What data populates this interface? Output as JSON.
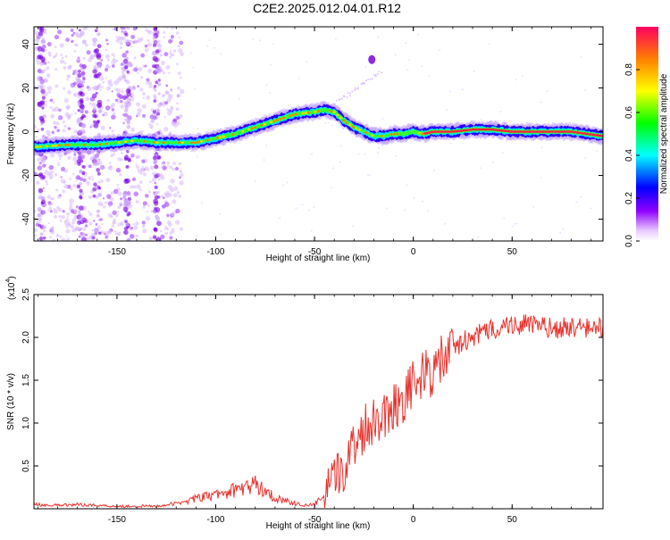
{
  "page": {
    "title": "C2E2.2025.012.04.01.R12"
  },
  "chart_data": [
    {
      "type": "heatmap",
      "xlabel": "Height of straight line (km)",
      "ylabel": "Frequency (Hz)",
      "xlim": [
        -192,
        96
      ],
      "ylim": [
        -50,
        48
      ],
      "xticks": [
        -150,
        -100,
        -50,
        0,
        50
      ],
      "yticks": [
        -40,
        -20,
        0,
        20,
        40
      ],
      "ridge": {
        "x": [
          -192,
          -175,
          -160,
          -150,
          -140,
          -130,
          -120,
          -110,
          -100,
          -90,
          -80,
          -70,
          -60,
          -50,
          -45,
          -40,
          -35,
          -30,
          -25,
          -20,
          -15,
          -10,
          -5,
          0,
          5,
          10,
          20,
          30,
          40,
          50,
          60,
          70,
          80,
          96
        ],
        "y": [
          -7,
          -6,
          -6,
          -5,
          -4,
          -5,
          -5,
          -5,
          -3,
          -1,
          2,
          5,
          8,
          9,
          10,
          9,
          5,
          2,
          0,
          -2,
          -2,
          -1,
          -1,
          0,
          -1,
          0,
          0,
          1,
          1,
          0,
          0,
          0,
          0,
          -2
        ]
      },
      "colorbar": {
        "label": "Normalized spectral amplitude",
        "ticks": [
          "0.0",
          "0.2",
          "0.4",
          "0.6",
          "0.8"
        ],
        "range": [
          0,
          1
        ]
      }
    },
    {
      "type": "line",
      "xlabel": "Height of straight line (km)",
      "ylabel": "SNR (10 * v/v)",
      "multiplier_label": "(x10",
      "multiplier_exp": "4",
      "xlim": [
        -192,
        96
      ],
      "ylim": [
        0,
        2.5
      ],
      "xticks": [
        -150,
        -100,
        -50,
        0,
        50
      ],
      "yticks": [
        0.5,
        1.0,
        1.5,
        2.0,
        2.5
      ],
      "color": "#e8312c",
      "x": [
        -192,
        -180,
        -170,
        -160,
        -150,
        -140,
        -130,
        -120,
        -110,
        -100,
        -90,
        -80,
        -75,
        -70,
        -65,
        -60,
        -55,
        -50,
        -45,
        -40,
        -35,
        -30,
        -25,
        -20,
        -15,
        -10,
        -5,
        0,
        5,
        10,
        15,
        20,
        25,
        30,
        35,
        40,
        50,
        60,
        70,
        80,
        90,
        96
      ],
      "values": [
        0.05,
        0.04,
        0.05,
        0.04,
        0.03,
        0.03,
        0.03,
        0.06,
        0.12,
        0.16,
        0.22,
        0.28,
        0.22,
        0.12,
        0.1,
        0.06,
        0.04,
        0.05,
        0.15,
        0.3,
        0.5,
        0.75,
        0.95,
        1.05,
        1.1,
        1.2,
        1.3,
        1.45,
        1.55,
        1.6,
        1.75,
        1.85,
        1.95,
        2.0,
        2.05,
        2.1,
        2.15,
        2.15,
        2.1,
        2.12,
        2.1,
        2.12
      ]
    }
  ]
}
